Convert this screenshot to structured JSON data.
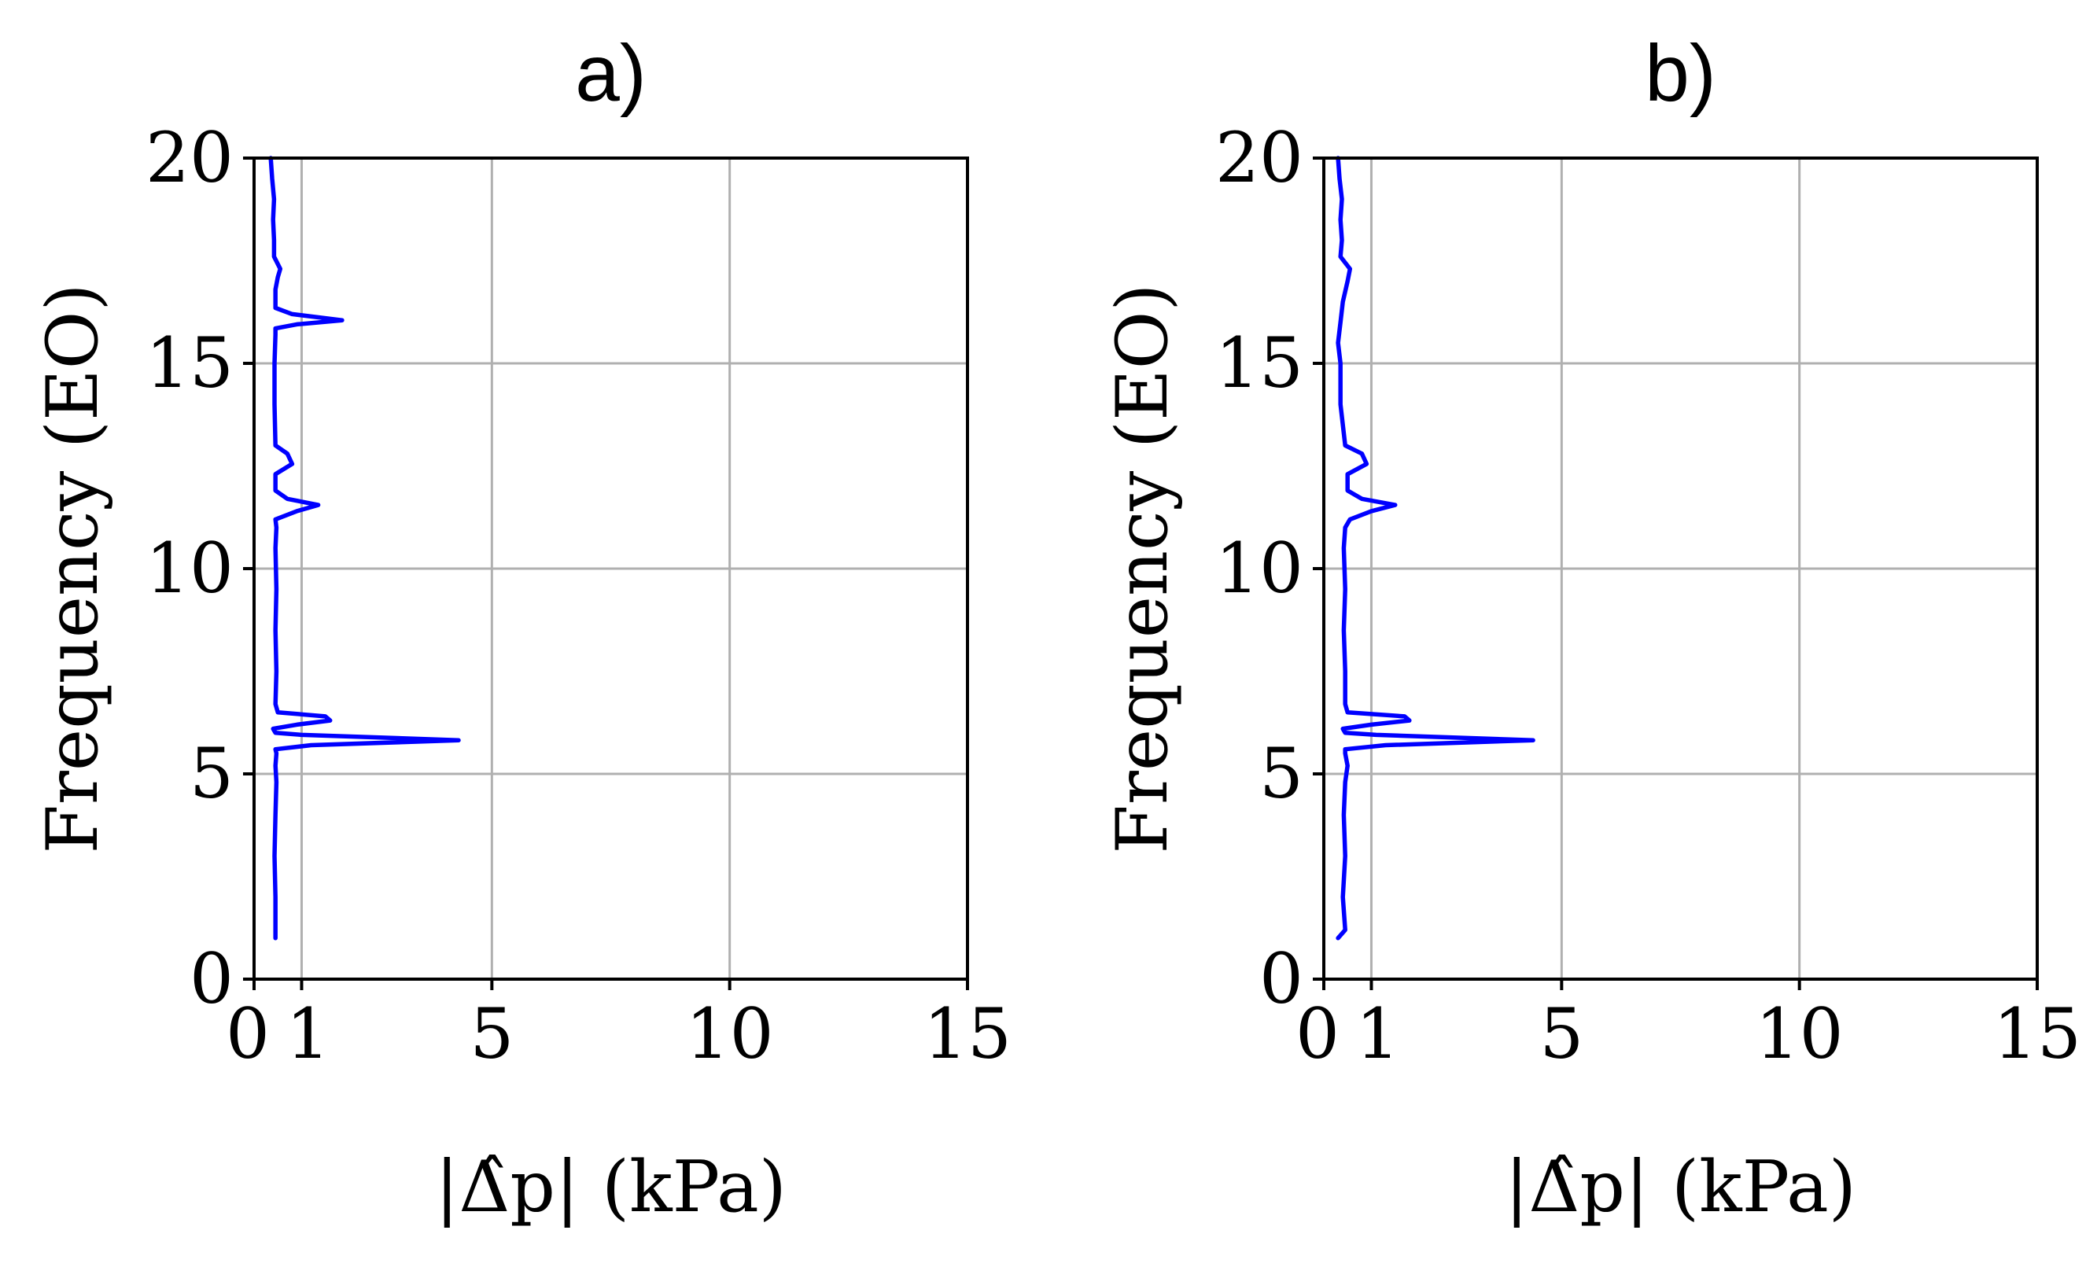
{
  "chart_data": [
    {
      "type": "line",
      "title": "a)",
      "xlabel": "|Δ̂p| (kPa)",
      "ylabel": "Frequency (EO)",
      "xlim": [
        0,
        15
      ],
      "ylim": [
        0,
        20
      ],
      "xticks": [
        0,
        1,
        5,
        10,
        15
      ],
      "yticks": [
        0,
        5,
        10,
        15,
        20
      ],
      "grid": true,
      "color": "#0000ff",
      "series": [
        {
          "points": [
            [
              0.45,
              1.0
            ],
            [
              0.45,
              2.0
            ],
            [
              0.43,
              3.0
            ],
            [
              0.45,
              4.0
            ],
            [
              0.47,
              4.8
            ],
            [
              0.45,
              5.2
            ],
            [
              0.47,
              5.5
            ],
            [
              0.45,
              5.6
            ],
            [
              1.2,
              5.7
            ],
            [
              4.3,
              5.82
            ],
            [
              1.0,
              5.95
            ],
            [
              0.45,
              6.0
            ],
            [
              0.4,
              6.1
            ],
            [
              0.9,
              6.2
            ],
            [
              1.6,
              6.3
            ],
            [
              1.5,
              6.4
            ],
            [
              0.5,
              6.5
            ],
            [
              0.45,
              6.7
            ],
            [
              0.47,
              7.5
            ],
            [
              0.45,
              8.5
            ],
            [
              0.47,
              9.5
            ],
            [
              0.45,
              10.5
            ],
            [
              0.47,
              11.0
            ],
            [
              0.45,
              11.2
            ],
            [
              0.9,
              11.4
            ],
            [
              1.35,
              11.55
            ],
            [
              0.7,
              11.7
            ],
            [
              0.45,
              11.9
            ],
            [
              0.45,
              12.3
            ],
            [
              0.8,
              12.55
            ],
            [
              0.7,
              12.8
            ],
            [
              0.45,
              13.0
            ],
            [
              0.43,
              14.0
            ],
            [
              0.43,
              15.0
            ],
            [
              0.45,
              15.7
            ],
            [
              0.45,
              15.85
            ],
            [
              0.9,
              15.95
            ],
            [
              1.85,
              16.05
            ],
            [
              0.8,
              16.2
            ],
            [
              0.45,
              16.35
            ],
            [
              0.45,
              16.8
            ],
            [
              0.5,
              17.1
            ],
            [
              0.55,
              17.3
            ],
            [
              0.42,
              17.6
            ],
            [
              0.42,
              18.0
            ],
            [
              0.4,
              18.5
            ],
            [
              0.42,
              19.0
            ],
            [
              0.38,
              19.5
            ],
            [
              0.35,
              20.0
            ]
          ]
        }
      ]
    },
    {
      "type": "line",
      "title": "b)",
      "xlabel": "|Δ̂p| (kPa)",
      "ylabel": "Frequency (EO)",
      "xlim": [
        0,
        15
      ],
      "ylim": [
        0,
        20
      ],
      "xticks": [
        0,
        1,
        5,
        10,
        15
      ],
      "yticks": [
        0,
        5,
        10,
        15,
        20
      ],
      "grid": true,
      "color": "#0000ff",
      "series": [
        {
          "points": [
            [
              0.3,
              1.0
            ],
            [
              0.45,
              1.2
            ],
            [
              0.4,
              2.0
            ],
            [
              0.45,
              3.0
            ],
            [
              0.42,
              4.0
            ],
            [
              0.45,
              4.8
            ],
            [
              0.5,
              5.2
            ],
            [
              0.45,
              5.5
            ],
            [
              0.45,
              5.6
            ],
            [
              1.3,
              5.7
            ],
            [
              4.4,
              5.82
            ],
            [
              1.1,
              5.95
            ],
            [
              0.45,
              6.0
            ],
            [
              0.4,
              6.1
            ],
            [
              1.0,
              6.2
            ],
            [
              1.8,
              6.3
            ],
            [
              1.7,
              6.4
            ],
            [
              0.5,
              6.5
            ],
            [
              0.45,
              6.7
            ],
            [
              0.45,
              7.5
            ],
            [
              0.42,
              8.5
            ],
            [
              0.45,
              9.5
            ],
            [
              0.42,
              10.5
            ],
            [
              0.45,
              11.0
            ],
            [
              0.55,
              11.2
            ],
            [
              1.0,
              11.4
            ],
            [
              1.5,
              11.55
            ],
            [
              0.8,
              11.7
            ],
            [
              0.5,
              11.9
            ],
            [
              0.5,
              12.3
            ],
            [
              0.9,
              12.55
            ],
            [
              0.8,
              12.8
            ],
            [
              0.45,
              13.0
            ],
            [
              0.35,
              14.0
            ],
            [
              0.35,
              15.0
            ],
            [
              0.3,
              15.5
            ],
            [
              0.35,
              16.0
            ],
            [
              0.4,
              16.5
            ],
            [
              0.5,
              17.0
            ],
            [
              0.55,
              17.3
            ],
            [
              0.35,
              17.6
            ],
            [
              0.38,
              18.0
            ],
            [
              0.35,
              18.5
            ],
            [
              0.38,
              19.0
            ],
            [
              0.33,
              19.5
            ],
            [
              0.3,
              20.0
            ]
          ]
        }
      ]
    }
  ]
}
